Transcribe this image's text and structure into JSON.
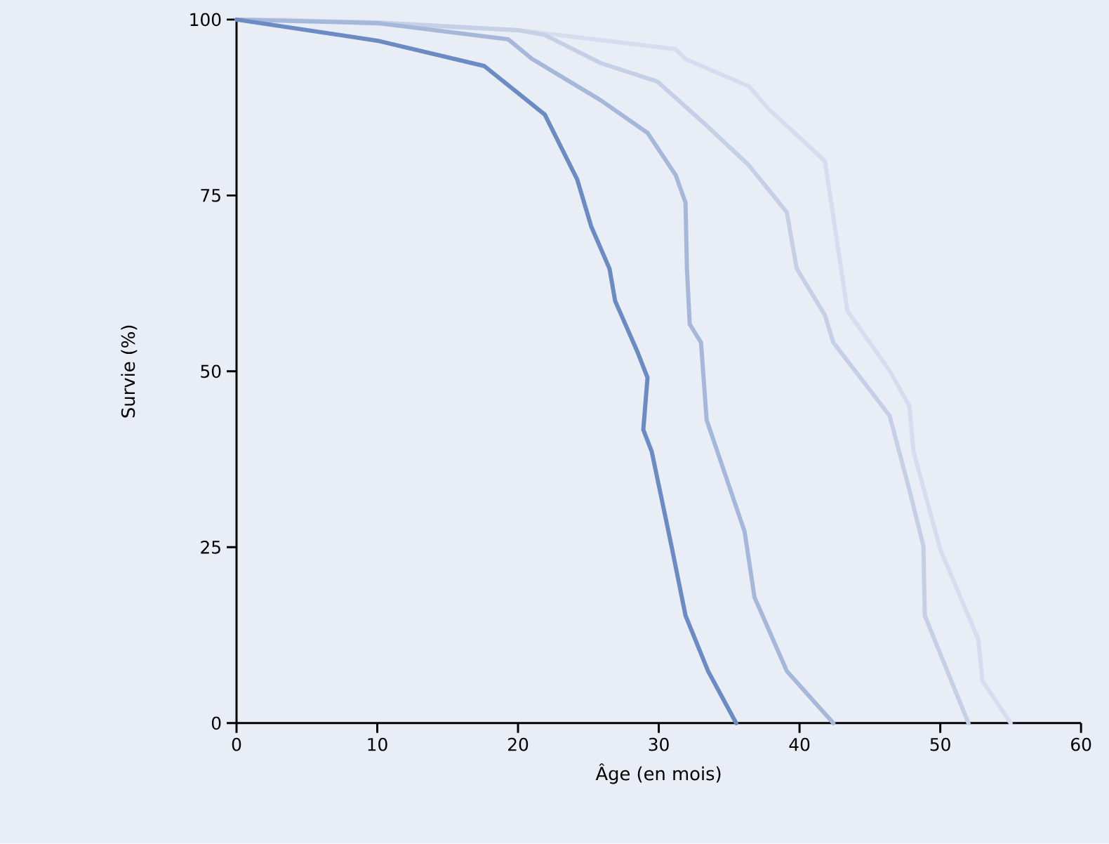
{
  "chart_data": {
    "type": "line",
    "xlabel": "Âge (en mois)",
    "ylabel": "Survie (%)",
    "xlim": [
      0,
      60
    ],
    "ylim": [
      0,
      100
    ],
    "xticks": [
      0,
      10,
      20,
      30,
      40,
      50,
      60
    ],
    "yticks": [
      0,
      25,
      50,
      75,
      100
    ],
    "grid": false,
    "marker": "none",
    "line_style": "solid",
    "series": [
      {
        "color": "#6b8bc3",
        "x": [
          0,
          10,
          17.6,
          21.9,
          24.2,
          25.2,
          26.5,
          26.9,
          28.5,
          29.2,
          28.9,
          29.5,
          30.9,
          31.9,
          33.5,
          35.5
        ],
        "values": [
          100,
          97,
          93.4,
          86.5,
          77.3,
          70.6,
          64.6,
          60,
          52.7,
          49.1,
          41.7,
          38.6,
          25.2,
          15.3,
          7.4,
          0
        ]
      },
      {
        "color": "#a6b8d9",
        "x": [
          0,
          10,
          19.3,
          21,
          25.9,
          29.2,
          31.2,
          31.9,
          32,
          32.2,
          33,
          33.4,
          36.1,
          36.8,
          39.1,
          42.4
        ],
        "values": [
          100,
          99.5,
          97.2,
          94.4,
          88.5,
          83.9,
          77.9,
          74,
          64.6,
          56.7,
          54.1,
          43.1,
          27.2,
          17.9,
          7.4,
          0
        ]
      },
      {
        "color": "#c5d0e6",
        "x": [
          0,
          10,
          20,
          21.9,
          25.9,
          29.9,
          33.2,
          36.4,
          39.1,
          39.8,
          41.8,
          42.4,
          46.4,
          47.8,
          48.8,
          48.9,
          52
        ],
        "values": [
          100,
          99.6,
          98.5,
          97.8,
          93.8,
          91.2,
          85.3,
          79.3,
          72.6,
          64.6,
          58,
          54.1,
          43.7,
          33.2,
          25.2,
          15.3,
          0
        ]
      },
      {
        "color": "#d6ddee",
        "x": [
          0,
          3.4,
          20,
          31.2,
          31.9,
          36.4,
          37.8,
          40.4,
          41.8,
          42.4,
          43.4,
          46.4,
          47.8,
          48.1,
          50,
          52.7,
          53,
          55
        ],
        "values": [
          100,
          100,
          98.5,
          95.8,
          94.4,
          90.5,
          87.3,
          82.5,
          79.9,
          72,
          58.6,
          50.1,
          45.1,
          38.6,
          24.7,
          11.9,
          6,
          0
        ]
      }
    ]
  }
}
